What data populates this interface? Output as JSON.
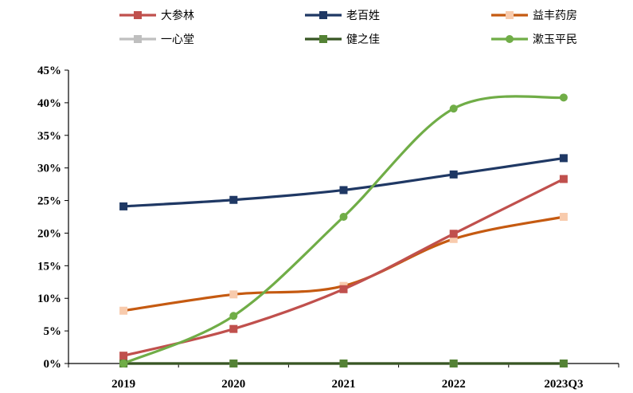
{
  "chart_data": {
    "type": "line",
    "title": "",
    "xlabel": "",
    "ylabel": "",
    "categories": [
      "2019",
      "2020",
      "2021",
      "2022",
      "2023Q3"
    ],
    "ylim": [
      0,
      45
    ],
    "yticks": [
      0,
      5,
      10,
      15,
      20,
      25,
      30,
      35,
      40,
      45
    ],
    "ytick_labels": [
      "0%",
      "5%",
      "10%",
      "15%",
      "20%",
      "25%",
      "30%",
      "35%",
      "40%",
      "45%"
    ],
    "grid": false,
    "legend_position": "top",
    "series": [
      {
        "name": "大参林",
        "color": "#c0504d",
        "marker": "square",
        "values": [
          1.2,
          5.3,
          11.4,
          19.9,
          28.3
        ]
      },
      {
        "name": "老百姓",
        "color": "#1f3864",
        "marker": "square",
        "values": [
          24.1,
          25.1,
          26.6,
          29.0,
          31.5
        ]
      },
      {
        "name": "益丰药房",
        "color": "#c55a11",
        "marker": "square",
        "marker_fill": "#f8cbad",
        "values": [
          8.1,
          10.6,
          11.9,
          19.1,
          22.5
        ]
      },
      {
        "name": "一心堂",
        "color": "#bfbfbf",
        "marker": "square",
        "values": [
          0,
          0,
          0,
          0,
          0
        ]
      },
      {
        "name": "健之佳",
        "color": "#375623",
        "marker": "square",
        "marker_fill": "#548235",
        "values": [
          0,
          0,
          0,
          0,
          0
        ]
      },
      {
        "name": "漱玉平民",
        "color": "#70ad47",
        "marker": "circle",
        "values": [
          0.0,
          7.3,
          22.5,
          39.1,
          40.8
        ]
      }
    ]
  }
}
